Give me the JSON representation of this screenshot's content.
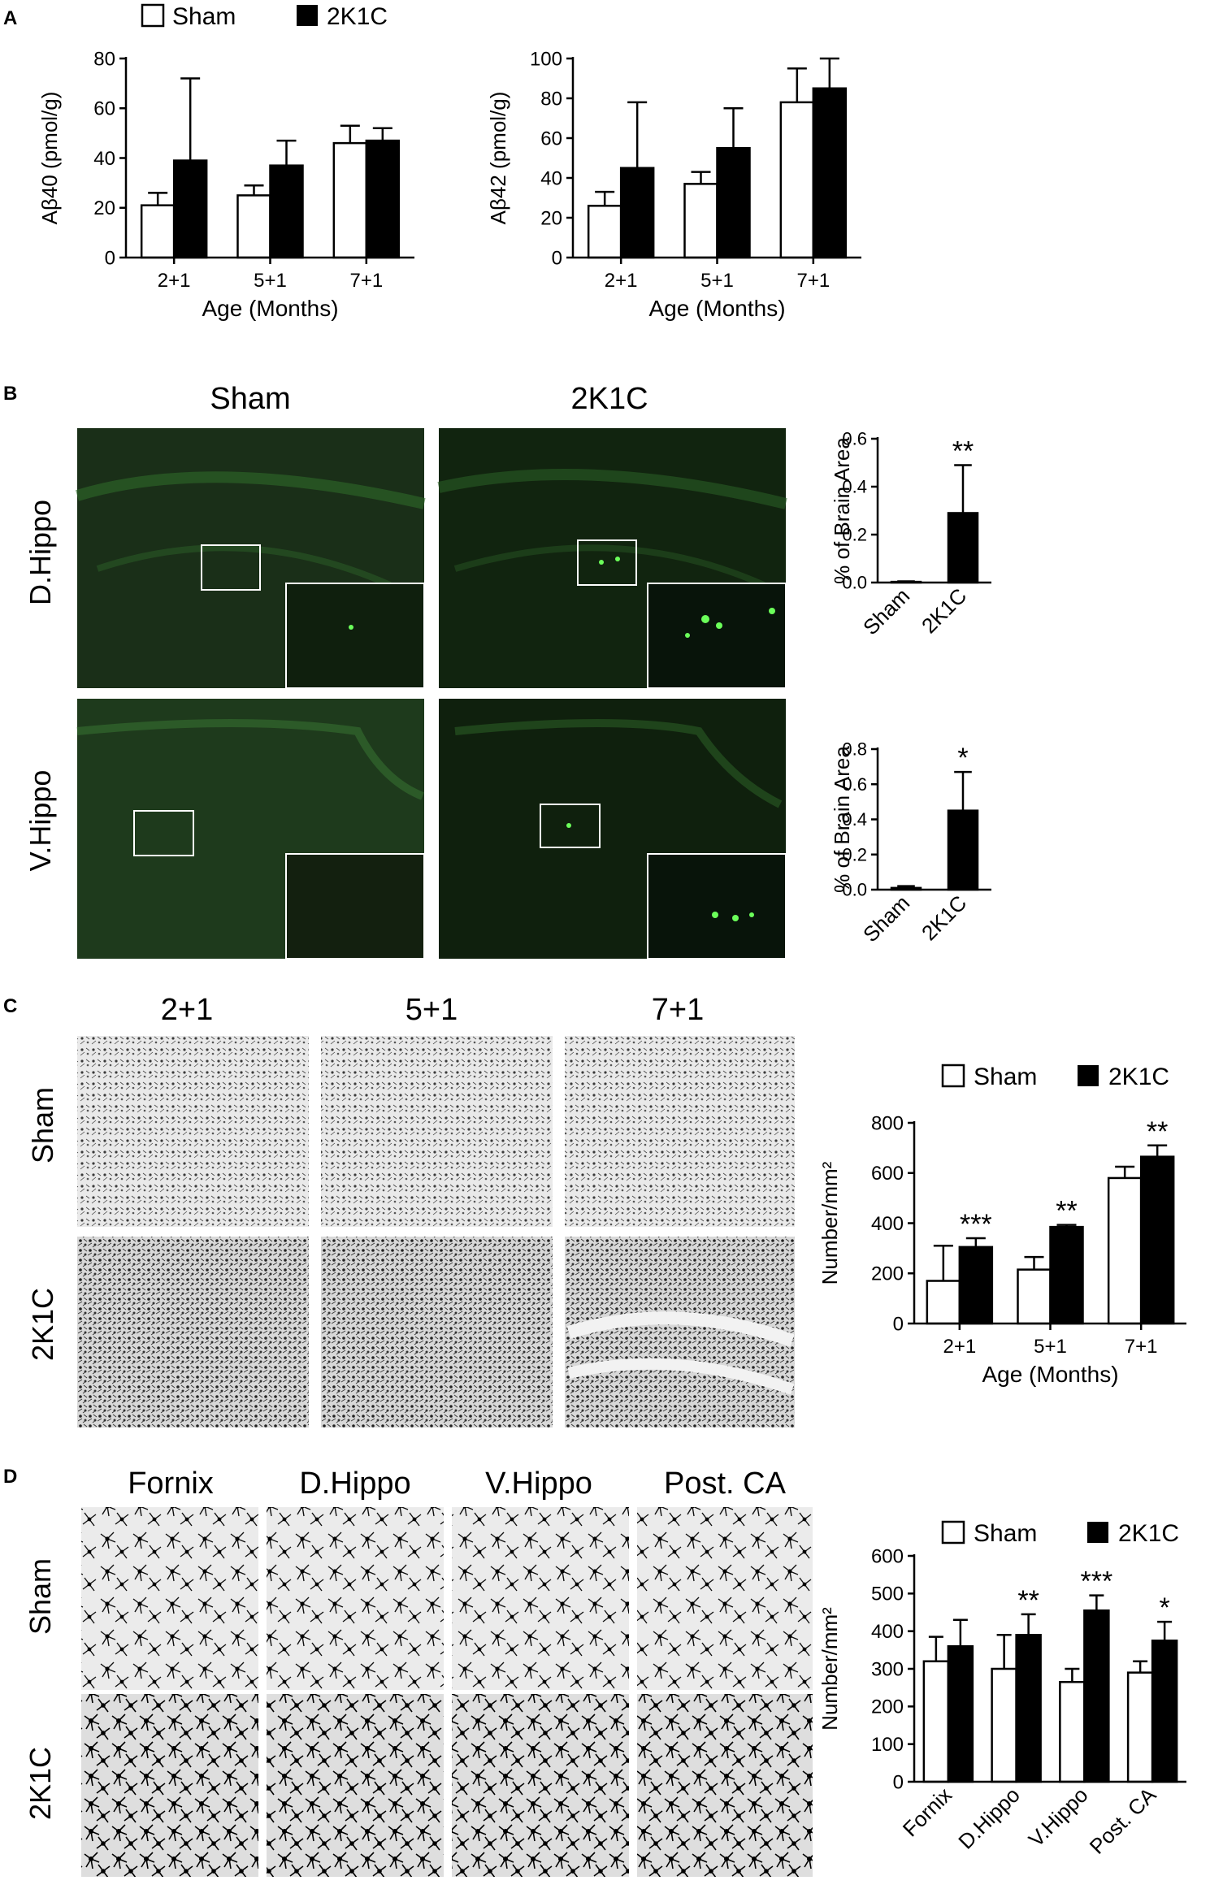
{
  "panel_letters": {
    "A": "A",
    "B": "B",
    "C": "C",
    "D": "D"
  },
  "colors": {
    "sham_fill": "#ffffff",
    "treat_fill": "#000000",
    "axis": "#000000",
    "fluor_bg": "#11240f",
    "fluor_dot": "#6bff5a"
  },
  "panelA": {
    "legend": {
      "sham": "Sham",
      "treat": "2K1C"
    }
  },
  "panelB": {
    "col_headers": [
      "Sham",
      "2K1C"
    ],
    "row_labels": [
      "D.Hippo",
      "V.Hippo"
    ]
  },
  "panelC": {
    "col_headers": [
      "2+1",
      "5+1",
      "7+1"
    ],
    "row_labels": [
      "Sham",
      "2K1C"
    ],
    "legend": {
      "sham": "Sham",
      "treat": "2K1C"
    }
  },
  "panelD": {
    "col_headers": [
      "Fornix",
      "D.Hippo",
      "V.Hippo",
      "Post. CA"
    ],
    "row_labels": [
      "Sham",
      "2K1C"
    ],
    "legend": {
      "sham": "Sham",
      "treat": "2K1C"
    }
  },
  "chart_data": [
    {
      "id": "A1",
      "type": "bar",
      "categories": [
        "2+1",
        "5+1",
        "7+1"
      ],
      "series": [
        {
          "name": "Sham",
          "values": [
            21,
            25,
            46
          ],
          "errors": [
            5,
            4,
            7
          ]
        },
        {
          "name": "2K1C",
          "values": [
            39,
            37,
            47
          ],
          "errors": [
            33,
            10,
            5
          ]
        }
      ],
      "xlabel": "Age (Months)",
      "ylabel": "Aβ40 (pmol/g)",
      "ylim": [
        0,
        80
      ],
      "yticks": [
        0,
        20,
        40,
        60,
        80
      ],
      "sig": [
        "",
        "",
        ""
      ]
    },
    {
      "id": "A2",
      "type": "bar",
      "categories": [
        "2+1",
        "5+1",
        "7+1"
      ],
      "series": [
        {
          "name": "Sham",
          "values": [
            26,
            37,
            78
          ],
          "errors": [
            7,
            6,
            17
          ]
        },
        {
          "name": "2K1C",
          "values": [
            45,
            55,
            85
          ],
          "errors": [
            33,
            20,
            15
          ]
        }
      ],
      "xlabel": "Age (Months)",
      "ylabel": "Aβ42 (pmol/g)",
      "ylim": [
        0,
        100
      ],
      "yticks": [
        0,
        20,
        40,
        60,
        80,
        100
      ],
      "sig": [
        "",
        "",
        ""
      ]
    },
    {
      "id": "B1",
      "type": "bar",
      "categories": [
        "Sham",
        "2K1C"
      ],
      "series": [
        {
          "name": "Sham",
          "values": [
            0.003,
            0.29
          ],
          "errors": [
            0.002,
            0.2
          ]
        }
      ],
      "xlabel": "",
      "ylabel": "% of Brain Area",
      "ylim": [
        0,
        0.6
      ],
      "yticks": [
        "0.0",
        "0.2",
        "0.4",
        "0.6"
      ],
      "sig": [
        "",
        "**"
      ]
    },
    {
      "id": "B2",
      "type": "bar",
      "categories": [
        "Sham",
        "2K1C"
      ],
      "series": [
        {
          "name": "Sham",
          "values": [
            0.01,
            0.45
          ],
          "errors": [
            0.01,
            0.22
          ]
        }
      ],
      "xlabel": "",
      "ylabel": "% of Brain Area",
      "ylim": [
        0,
        0.8
      ],
      "yticks": [
        "0.0",
        "0.2",
        "0.4",
        "0.6",
        "0.8"
      ],
      "sig": [
        "",
        "*"
      ]
    },
    {
      "id": "C",
      "type": "bar",
      "categories": [
        "2+1",
        "5+1",
        "7+1"
      ],
      "series": [
        {
          "name": "Sham",
          "values": [
            170,
            215,
            580
          ],
          "errors": [
            140,
            50,
            45
          ]
        },
        {
          "name": "2K1C",
          "values": [
            305,
            385,
            665
          ],
          "errors": [
            35,
            8,
            45
          ]
        }
      ],
      "xlabel": "Age (Months)",
      "ylabel": "Number/mm²",
      "ylim": [
        0,
        800
      ],
      "yticks": [
        0,
        200,
        400,
        600,
        800
      ],
      "sig": [
        "***",
        "**",
        "**"
      ]
    },
    {
      "id": "D",
      "type": "bar",
      "categories": [
        "Fornix",
        "D.Hippo",
        "V.Hippo",
        "Post. CA"
      ],
      "series": [
        {
          "name": "Sham",
          "values": [
            320,
            300,
            265,
            290
          ],
          "errors": [
            65,
            90,
            35,
            30
          ]
        },
        {
          "name": "2K1C",
          "values": [
            360,
            390,
            455,
            375
          ],
          "errors": [
            70,
            55,
            40,
            50
          ]
        }
      ],
      "xlabel": "",
      "ylabel": "Number/mm²",
      "ylim": [
        0,
        600
      ],
      "yticks": [
        0,
        100,
        200,
        300,
        400,
        500,
        600
      ],
      "sig": [
        "",
        "**",
        "***",
        "*"
      ]
    }
  ]
}
